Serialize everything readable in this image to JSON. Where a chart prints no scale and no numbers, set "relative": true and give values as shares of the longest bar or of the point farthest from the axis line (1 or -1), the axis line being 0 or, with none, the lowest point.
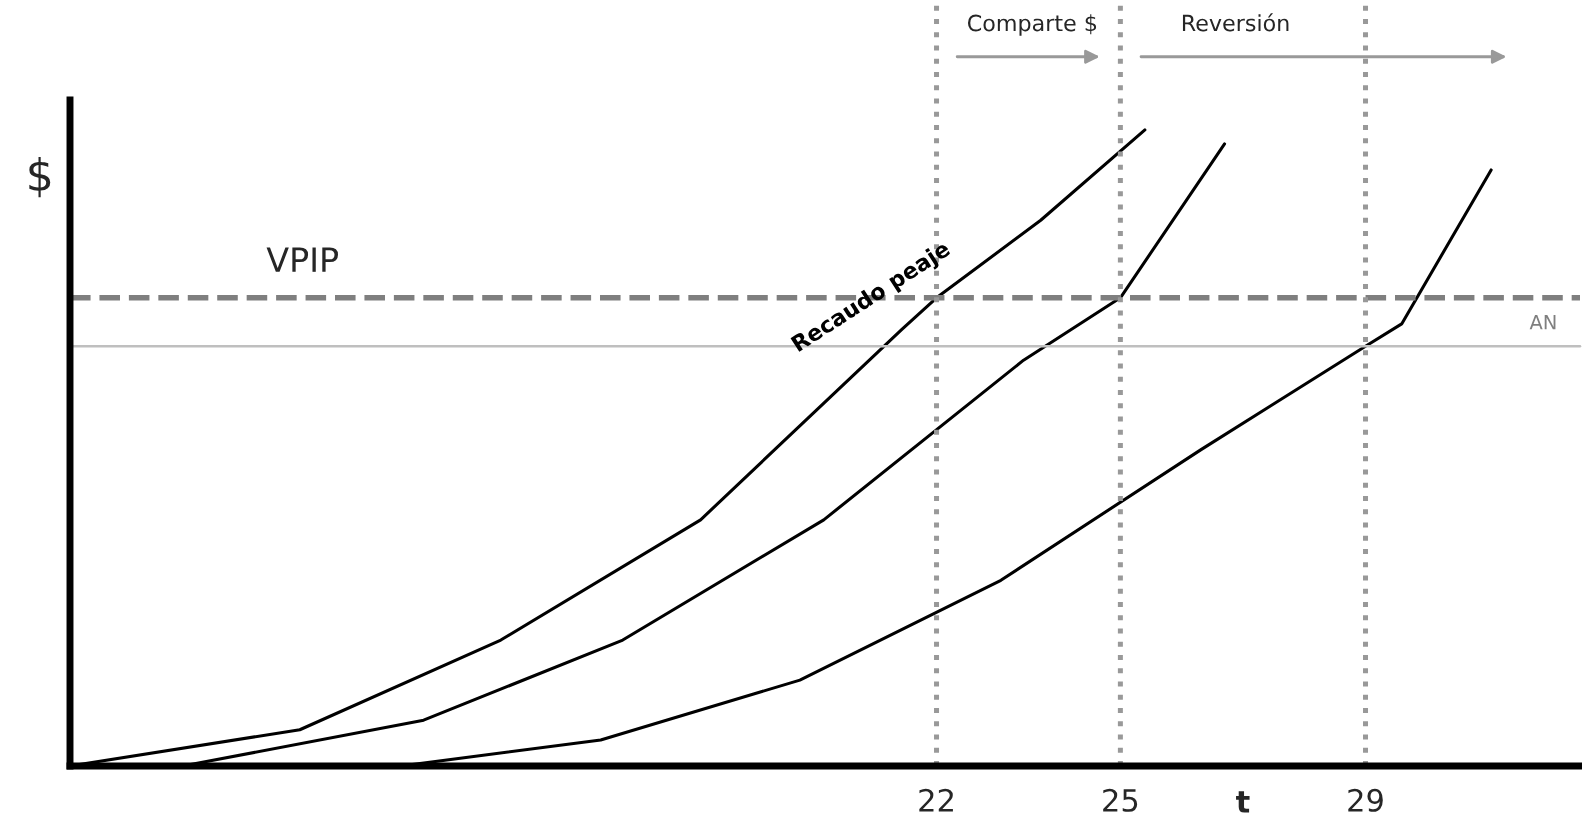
{
  "chart_data": {
    "type": "line",
    "relative": true,
    "ylabel": "$",
    "xlim": [
      7.86,
      32.5
    ],
    "xticks": [
      22,
      25,
      29
    ],
    "series": [
      {
        "name": "Recaudo peaje",
        "color": "#000000",
        "x": [
          7.86,
          11.61,
          14.89,
          18.15,
          21.43,
          22,
          23.7,
          25.4
        ],
        "values": [
          0,
          0.057,
          0.198,
          0.387,
          0.686,
          0.736,
          0.858,
          1.0
        ]
      },
      {
        "color": "#000000",
        "x": [
          9.7,
          13.63,
          16.88,
          20.16,
          23.42,
          25,
          26.7
        ],
        "values": [
          0,
          0.072,
          0.198,
          0.387,
          0.638,
          0.736,
          0.978
        ]
      },
      {
        "color": "#000000",
        "x": [
          13.26,
          16.52,
          19.77,
          23.05,
          26.31,
          29,
          29.59,
          31.05
        ],
        "values": [
          0,
          0.041,
          0.135,
          0.292,
          0.497,
          0.66,
          0.695,
          0.937
        ]
      }
    ],
    "ref_lines": [
      {
        "axis": "y",
        "value": 0.736,
        "label": "VPIP",
        "color": "#7f7f7f",
        "line_style": "dashed"
      },
      {
        "axis": "y",
        "value": 0.66,
        "label": "AN",
        "color": "#bfbfbf",
        "line_style": "solid"
      },
      {
        "axis": "x",
        "value": 22,
        "color": "#999999",
        "line_style": "dotted"
      },
      {
        "axis": "x",
        "value": 25,
        "color": "#999999",
        "line_style": "dotted"
      },
      {
        "axis": "x",
        "value": 29,
        "color": "#999999",
        "line_style": "dotted"
      }
    ],
    "annotations": [
      "Comparte $",
      "Reversión",
      "t"
    ],
    "grid": false,
    "legend": false,
    "marker": "none",
    "line_style": "solid"
  }
}
